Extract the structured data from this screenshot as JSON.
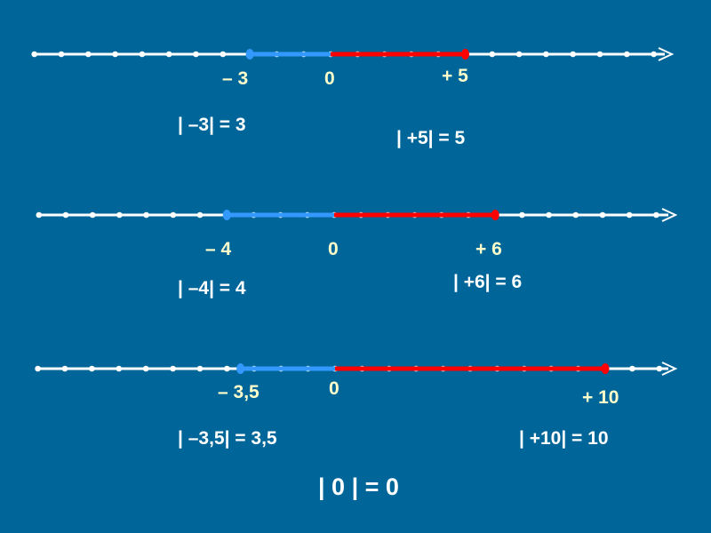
{
  "colors": {
    "background": "#006699",
    "axis": "#ffffff",
    "negative_segment": "#3399ff",
    "positive_segment": "#ff0000",
    "label": "#ffffcc",
    "equation": "#ffffff"
  },
  "number_lines": [
    {
      "negative": -3,
      "positive": 5,
      "labels": {
        "negative": "– 3",
        "zero": "0",
        "positive": "+ 5"
      },
      "equations": {
        "negative": "| –3| = 3",
        "positive": "| +5| = 5"
      }
    },
    {
      "negative": -4,
      "positive": 6,
      "labels": {
        "negative": "– 4",
        "zero": "0",
        "positive": "+ 6"
      },
      "equations": {
        "negative": "| –4| = 4",
        "positive": "| +6| = 6"
      }
    },
    {
      "negative": -3.5,
      "positive": 10,
      "labels": {
        "negative": "– 3,5",
        "zero": "0",
        "positive": "+ 10"
      },
      "equations": {
        "negative": "| –3,5| = 3,5",
        "positive": "| +10| = 10"
      }
    }
  ],
  "zero_equation": "| 0 | =  0"
}
